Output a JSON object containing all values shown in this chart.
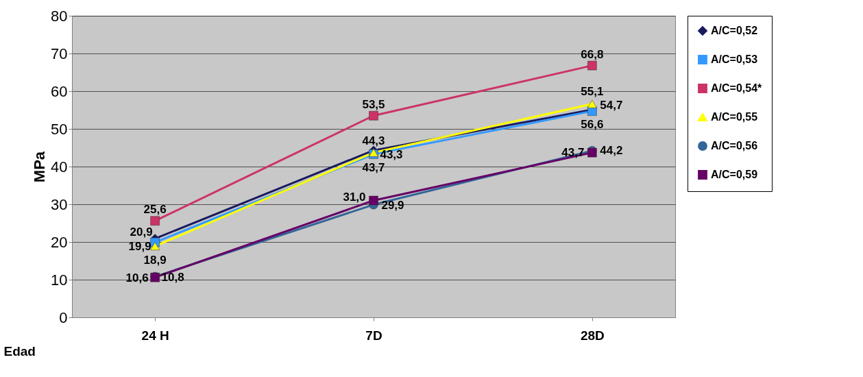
{
  "chart_data": {
    "type": "line",
    "xlabel": "Edad",
    "ylabel": "MPa",
    "categories": [
      "24 H",
      "7D",
      "28D"
    ],
    "ylim": [
      0,
      80
    ],
    "yticks": [
      0,
      10,
      20,
      30,
      40,
      50,
      60,
      70,
      80
    ],
    "grid": "y",
    "legend": "right",
    "line_style": "solid",
    "series": [
      {
        "name": "A/C=0,52",
        "color": "#1a1a5e",
        "marker": "diamond",
        "values": [
          20.9,
          44.3,
          55.1
        ],
        "value_labels": [
          "20,9",
          "44,3",
          "55,1"
        ]
      },
      {
        "name": "A/C=0,53",
        "color": "#3399ff",
        "marker": "square",
        "values": [
          19.9,
          43.3,
          54.7
        ],
        "value_labels": [
          "19,9",
          "43,3",
          "54,7"
        ]
      },
      {
        "name": "A/C=0,54*",
        "color": "#cc3366",
        "marker": "square",
        "values": [
          25.6,
          53.5,
          66.8
        ],
        "value_labels": [
          "25,6",
          "53,5",
          "66,8"
        ]
      },
      {
        "name": "A/C=0,55",
        "color": "#ffff00",
        "marker": "triangle",
        "values": [
          18.9,
          43.7,
          56.6
        ],
        "value_labels": [
          "18,9",
          "43,7",
          "56,6"
        ]
      },
      {
        "name": "A/C=0,56",
        "color": "#336699",
        "marker": "circle",
        "values": [
          10.8,
          29.9,
          44.2
        ],
        "value_labels": [
          "10,8",
          "29,9",
          "44,2"
        ]
      },
      {
        "name": "A/C=0,59",
        "color": "#660066",
        "marker": "square",
        "values": [
          10.6,
          31.0,
          43.7
        ],
        "value_labels": [
          "10,6",
          "31,0",
          "43,7"
        ]
      }
    ]
  }
}
